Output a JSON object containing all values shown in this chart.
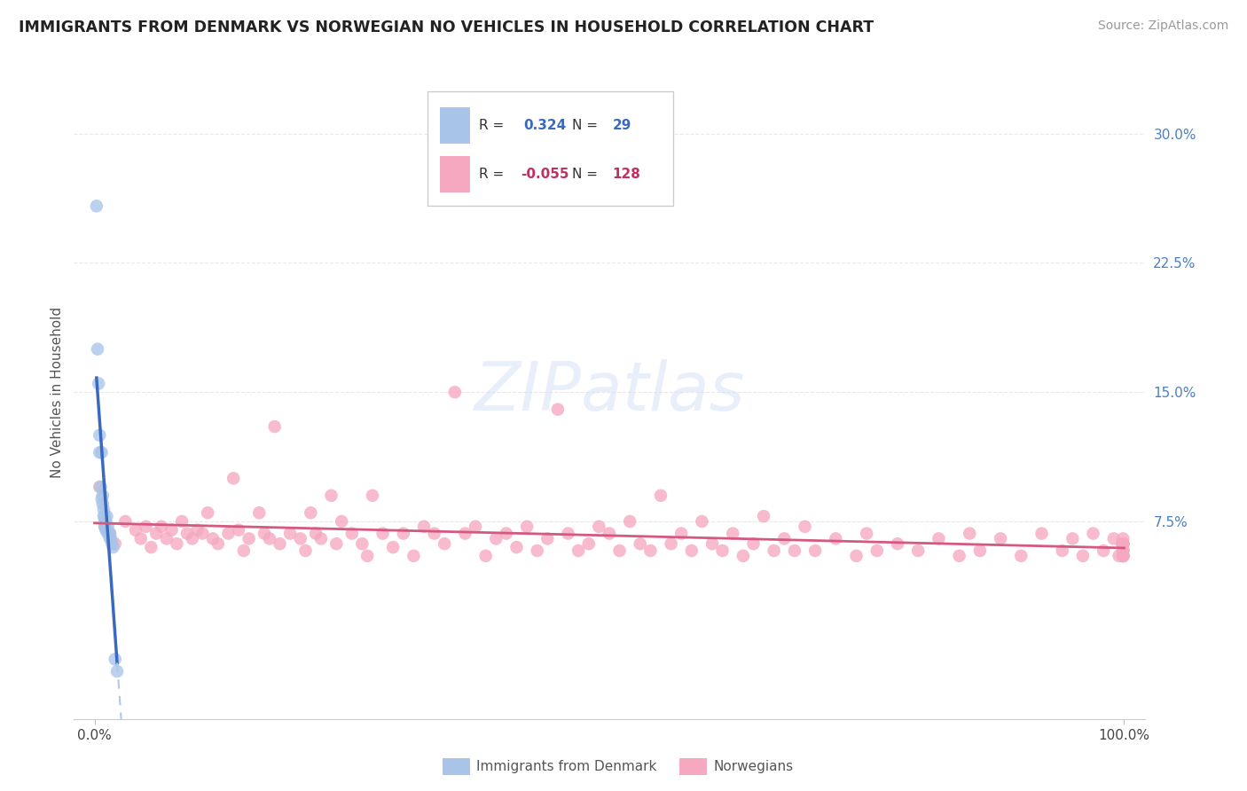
{
  "title": "IMMIGRANTS FROM DENMARK VS NORWEGIAN NO VEHICLES IN HOUSEHOLD CORRELATION CHART",
  "source": "Source: ZipAtlas.com",
  "ylabel": "No Vehicles in Household",
  "y_tick_values": [
    0.075,
    0.15,
    0.225,
    0.3
  ],
  "y_tick_labels": [
    "7.5%",
    "15.0%",
    "22.5%",
    "30.0%"
  ],
  "xlim": [
    -0.02,
    1.02
  ],
  "ylim": [
    -0.04,
    0.34
  ],
  "blue_R": "0.324",
  "blue_N": "29",
  "pink_R": "-0.055",
  "pink_N": "128",
  "blue_color": "#a8c4e8",
  "pink_color": "#f5a8c0",
  "blue_line_color": "#3a6abf",
  "pink_line_color": "#d45880",
  "blue_dash_color": "#b0c8e8",
  "legend_label_blue": "Immigrants from Denmark",
  "legend_label_pink": "Norwegians",
  "watermark": "ZIPatlas",
  "background_color": "#ffffff",
  "grid_color": "#e8e8e8",
  "blue_x": [
    0.002,
    0.003,
    0.004,
    0.005,
    0.005,
    0.006,
    0.007,
    0.007,
    0.008,
    0.008,
    0.009,
    0.009,
    0.01,
    0.01,
    0.01,
    0.011,
    0.011,
    0.012,
    0.012,
    0.013,
    0.013,
    0.014,
    0.015,
    0.015,
    0.016,
    0.017,
    0.018,
    0.02,
    0.022
  ],
  "blue_y": [
    0.258,
    0.175,
    0.155,
    0.125,
    0.115,
    0.095,
    0.115,
    0.088,
    0.09,
    0.085,
    0.082,
    0.078,
    0.078,
    0.075,
    0.072,
    0.075,
    0.07,
    0.078,
    0.07,
    0.072,
    0.068,
    0.068,
    0.065,
    0.068,
    0.065,
    0.062,
    0.06,
    -0.005,
    -0.012
  ],
  "pink_x": [
    0.005,
    0.01,
    0.015,
    0.02,
    0.03,
    0.04,
    0.045,
    0.05,
    0.055,
    0.06,
    0.065,
    0.07,
    0.075,
    0.08,
    0.085,
    0.09,
    0.095,
    0.1,
    0.105,
    0.11,
    0.115,
    0.12,
    0.13,
    0.135,
    0.14,
    0.145,
    0.15,
    0.16,
    0.165,
    0.17,
    0.175,
    0.18,
    0.19,
    0.2,
    0.205,
    0.21,
    0.215,
    0.22,
    0.23,
    0.235,
    0.24,
    0.25,
    0.26,
    0.265,
    0.27,
    0.28,
    0.29,
    0.3,
    0.31,
    0.32,
    0.33,
    0.34,
    0.35,
    0.36,
    0.37,
    0.38,
    0.39,
    0.4,
    0.41,
    0.42,
    0.43,
    0.44,
    0.45,
    0.46,
    0.47,
    0.48,
    0.49,
    0.5,
    0.51,
    0.52,
    0.53,
    0.54,
    0.55,
    0.56,
    0.57,
    0.58,
    0.59,
    0.6,
    0.61,
    0.62,
    0.63,
    0.64,
    0.65,
    0.66,
    0.67,
    0.68,
    0.69,
    0.7,
    0.72,
    0.74,
    0.75,
    0.76,
    0.78,
    0.8,
    0.82,
    0.84,
    0.85,
    0.86,
    0.88,
    0.9,
    0.92,
    0.94,
    0.95,
    0.96,
    0.97,
    0.98,
    0.99,
    0.995,
    0.998,
    0.999,
    0.999,
    0.999,
    0.999,
    0.999,
    0.999,
    0.999,
    0.999,
    0.999,
    0.999,
    0.999,
    0.999,
    0.999,
    0.999,
    0.999,
    0.999,
    0.999,
    0.999,
    0.999
  ],
  "pink_y": [
    0.095,
    0.072,
    0.068,
    0.062,
    0.075,
    0.07,
    0.065,
    0.072,
    0.06,
    0.068,
    0.072,
    0.065,
    0.07,
    0.062,
    0.075,
    0.068,
    0.065,
    0.07,
    0.068,
    0.08,
    0.065,
    0.062,
    0.068,
    0.1,
    0.07,
    0.058,
    0.065,
    0.08,
    0.068,
    0.065,
    0.13,
    0.062,
    0.068,
    0.065,
    0.058,
    0.08,
    0.068,
    0.065,
    0.09,
    0.062,
    0.075,
    0.068,
    0.062,
    0.055,
    0.09,
    0.068,
    0.06,
    0.068,
    0.055,
    0.072,
    0.068,
    0.062,
    0.15,
    0.068,
    0.072,
    0.055,
    0.065,
    0.068,
    0.06,
    0.072,
    0.058,
    0.065,
    0.14,
    0.068,
    0.058,
    0.062,
    0.072,
    0.068,
    0.058,
    0.075,
    0.062,
    0.058,
    0.09,
    0.062,
    0.068,
    0.058,
    0.075,
    0.062,
    0.058,
    0.068,
    0.055,
    0.062,
    0.078,
    0.058,
    0.065,
    0.058,
    0.072,
    0.058,
    0.065,
    0.055,
    0.068,
    0.058,
    0.062,
    0.058,
    0.065,
    0.055,
    0.068,
    0.058,
    0.065,
    0.055,
    0.068,
    0.058,
    0.065,
    0.055,
    0.068,
    0.058,
    0.065,
    0.055,
    0.062,
    0.058,
    0.065,
    0.055,
    0.062,
    0.055,
    0.062,
    0.055,
    0.058,
    0.055,
    0.062,
    0.055,
    0.058,
    0.055,
    0.062,
    0.055,
    0.058,
    0.055,
    0.062,
    0.055
  ]
}
